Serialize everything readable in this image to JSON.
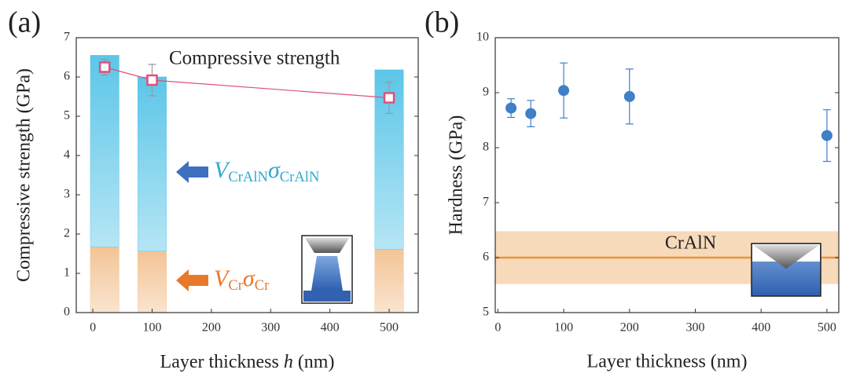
{
  "chart_data": [
    {
      "type": "bar",
      "label": "(a)",
      "x": [
        20,
        100,
        500
      ],
      "xlim": [
        -28,
        549
      ],
      "xticks": [
        0,
        100,
        200,
        300,
        400,
        500
      ],
      "ylim": [
        0,
        7
      ],
      "yticks": [
        0,
        1,
        2,
        3,
        4,
        5,
        6,
        7
      ],
      "ylabel": "Compressive strength (GPa)",
      "xlabel": [
        "Layer thickness ",
        "h",
        " (nm)"
      ],
      "series": [
        {
          "type": "bar",
          "label": [
            "V",
            "Cr",
            "σ",
            "Cr"
          ],
          "color": "#f3c496",
          "label_color": "#e8782a",
          "values": [
            1.68,
            1.57,
            1.62
          ]
        },
        {
          "type": "bar",
          "label": [
            "V",
            "CrAlN",
            "σ",
            "CrAlN"
          ],
          "color": "#5cc6e8",
          "label_color": "#2fa9cf",
          "values": [
            4.87,
            4.43,
            4.56
          ]
        },
        {
          "type": "line",
          "name": "Compressive strength",
          "color": "#e0507a",
          "values": [
            6.25,
            5.92,
            5.47
          ],
          "errors": [
            0.2,
            0.4,
            0.4
          ]
        }
      ]
    },
    {
      "type": "scatter",
      "label": "(b)",
      "x": [
        20,
        50,
        100,
        200,
        500
      ],
      "xlim": [
        -4,
        518
      ],
      "xticks": [
        0,
        100,
        200,
        300,
        400,
        500
      ],
      "ylim": [
        5,
        10
      ],
      "yticks": [
        5,
        6,
        7,
        8,
        9,
        10
      ],
      "ylabel": "Hardness (GPa)",
      "xlabel": "Layer thickness (nm)",
      "series": [
        {
          "type": "scatter",
          "color": "#3f80c6",
          "values": [
            8.72,
            8.62,
            9.04,
            8.93,
            8.22
          ],
          "errors": [
            0.17,
            0.24,
            0.5,
            0.5,
            0.47
          ]
        }
      ],
      "reference": {
        "label": "CrAlN",
        "value": 6,
        "range": [
          5.52,
          6.48
        ],
        "color": "#e8963a"
      }
    }
  ]
}
